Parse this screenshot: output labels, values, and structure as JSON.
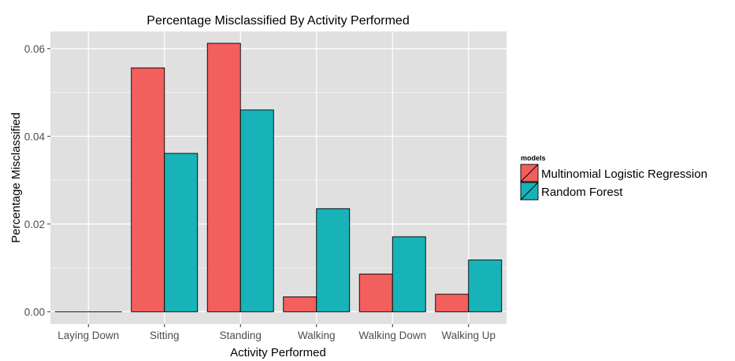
{
  "chart_data": {
    "type": "bar",
    "title": "Percentage Misclassified By Activity Performed",
    "xlabel": "Activity Performed",
    "ylabel": "Percentage Misclassified",
    "categories": [
      "Laying Down",
      "Sitting",
      "Standing",
      "Walking",
      "Walking Down",
      "Walking Up"
    ],
    "series": [
      {
        "name": "Multinomial Logistic Regression",
        "color": "#F25F5C",
        "values": [
          0.0,
          0.0556,
          0.0612,
          0.0034,
          0.0086,
          0.004
        ]
      },
      {
        "name": "Random Forest",
        "color": "#17B3B8",
        "values": [
          0.0,
          0.0361,
          0.046,
          0.0235,
          0.0171,
          0.0118
        ]
      }
    ],
    "ylim": [
      -0.0028,
      0.0639
    ],
    "yticks": [
      0.0,
      0.02,
      0.04,
      0.06
    ],
    "ytick_labels": [
      "0.00",
      "0.02",
      "0.04",
      "0.06"
    ],
    "grid": true,
    "legend": {
      "title": "models",
      "position": "right"
    },
    "panel_color": "#E0E0E0",
    "grid_color": "#FFFFFF"
  }
}
